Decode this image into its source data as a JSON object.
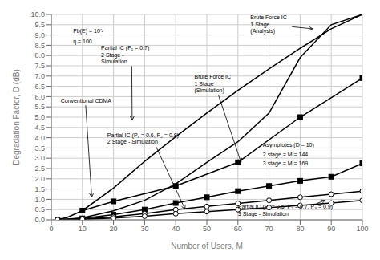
{
  "chart_data": {
    "type": "line",
    "title": "",
    "xlabel": "Number of Users, M",
    "ylabel": "Degradation Factor, D (dB)",
    "xlim": [
      0,
      100
    ],
    "ylim": [
      0,
      10
    ],
    "xticks": [
      0,
      10,
      20,
      30,
      40,
      50,
      60,
      70,
      80,
      90,
      100
    ],
    "yticks": [
      {
        "value": 0,
        "label": "0.0"
      },
      0.5,
      {
        "value": 1,
        "label": "1.0"
      },
      1.5,
      {
        "value": 2,
        "label": "2.0"
      },
      2.5,
      {
        "value": 3,
        "label": "3.0"
      },
      3.5,
      {
        "value": 4,
        "label": "4.0"
      },
      4.5,
      {
        "value": 5,
        "label": "5.0"
      },
      5.5,
      {
        "value": 6,
        "label": "6.0"
      },
      6.5,
      {
        "value": 7,
        "label": "7.0"
      },
      7.5,
      {
        "value": 8,
        "label": "8.0"
      },
      8.5,
      {
        "value": 9,
        "label": "9.0"
      },
      9.5,
      {
        "value": 10,
        "label": "10.0"
      }
    ],
    "grid": true,
    "series": [
      {
        "x": [
          2,
          5,
          10,
          20,
          30,
          40,
          50,
          60,
          70,
          80,
          90,
          100
        ],
        "values": [
          0.017,
          0.11,
          0.45,
          1.55,
          2.85,
          4.05,
          5.2,
          6.3,
          7.35,
          8.35,
          9.3,
          10.0
        ],
        "color": "#000000",
        "marker": "none",
        "line_style": "solid"
      },
      {
        "x": [
          2,
          5,
          10,
          20,
          30,
          40,
          50,
          60,
          70,
          80,
          90,
          100
        ],
        "values": [
          0.005,
          0.025,
          0.1,
          0.44,
          0.95,
          1.75,
          2.8,
          3.8,
          5.2,
          7.9,
          9.5,
          10.0
        ],
        "color": "#000000",
        "marker": "none",
        "line_style": "solid"
      },
      {
        "x": [
          10,
          20,
          40,
          60,
          80,
          100
        ],
        "values": [
          0.45,
          0.9,
          1.65,
          2.8,
          5.0,
          6.9
        ],
        "color": "#000000",
        "marker": "square",
        "line_style": "solid"
      },
      {
        "x": [
          2,
          10,
          20,
          30,
          40,
          50,
          60,
          70,
          80,
          90,
          100
        ],
        "values": [
          0.005,
          0.07,
          0.25,
          0.5,
          0.82,
          1.1,
          1.4,
          1.65,
          1.9,
          2.1,
          2.75
        ],
        "color": "#000000",
        "marker": "square",
        "line_style": "solid"
      },
      {
        "x": [
          2,
          10,
          20,
          30,
          40,
          50,
          60,
          70,
          80,
          90,
          100
        ],
        "values": [
          0.005,
          0.04,
          0.15,
          0.3,
          0.5,
          0.65,
          0.8,
          0.95,
          1.1,
          1.25,
          1.4
        ],
        "color": "#000000",
        "marker": "open_circle",
        "line_style": "solid"
      },
      {
        "x": [
          2,
          10,
          20,
          30,
          40,
          50,
          60,
          70,
          80,
          90,
          100
        ],
        "values": [
          0.003,
          0.025,
          0.09,
          0.18,
          0.3,
          0.4,
          0.5,
          0.6,
          0.7,
          0.82,
          0.95
        ],
        "color": "#000000",
        "marker": "open_circle",
        "line_style": "solid"
      }
    ],
    "annotations": [
      {
        "text": "Pb(E) = 10⁻²",
        "x": 7,
        "y": 9.1
      },
      {
        "text": "η = 100",
        "x": 7,
        "y": 8.6
      },
      {
        "text": "Conventional CDMA",
        "x": 3,
        "y": 5.7,
        "arrow_to": [
          13,
          1.1
        ]
      },
      {
        "text": "Partial IC (P₁ = 0.7)\n2 Stage -\nSimulation",
        "x": 16,
        "y": 7.6,
        "arrow_to": [
          26,
          4.85
        ]
      },
      {
        "text": "Brute Force IC\n1 Stage\n(Analysis)",
        "x": 64,
        "y": 9.1,
        "arrow_to": [
          84,
          9.3
        ]
      },
      {
        "text": "Brute Force IC\n1 Stage\n(Simulation)",
        "x": 46,
        "y": 6.2,
        "arrow_to": [
          61,
          2.8
        ]
      },
      {
        "text": "Partial IC (P₁ = 0.6, P₂ = 0.8)\n2 Stage - Simulation",
        "x": 18,
        "y": 3.7,
        "arrow_to": [
          43,
          0.52
        ]
      },
      {
        "text": "Asymptotes (D = 10)",
        "x": 68,
        "y": 3.55
      },
      {
        "text": "2 stage = M = 144",
        "x": 68,
        "y": 3.1
      },
      {
        "text": "3 stage = M = 169",
        "x": 68,
        "y": 2.65
      },
      {
        "text": "Partial IC (P₁ = 0.5, P₂ = 0.7, P₃ = 0.9)\n3 Stage - Simulation",
        "x": 60,
        "y": 0.2,
        "arrow_to": [
          88,
          0.95
        ]
      }
    ]
  }
}
